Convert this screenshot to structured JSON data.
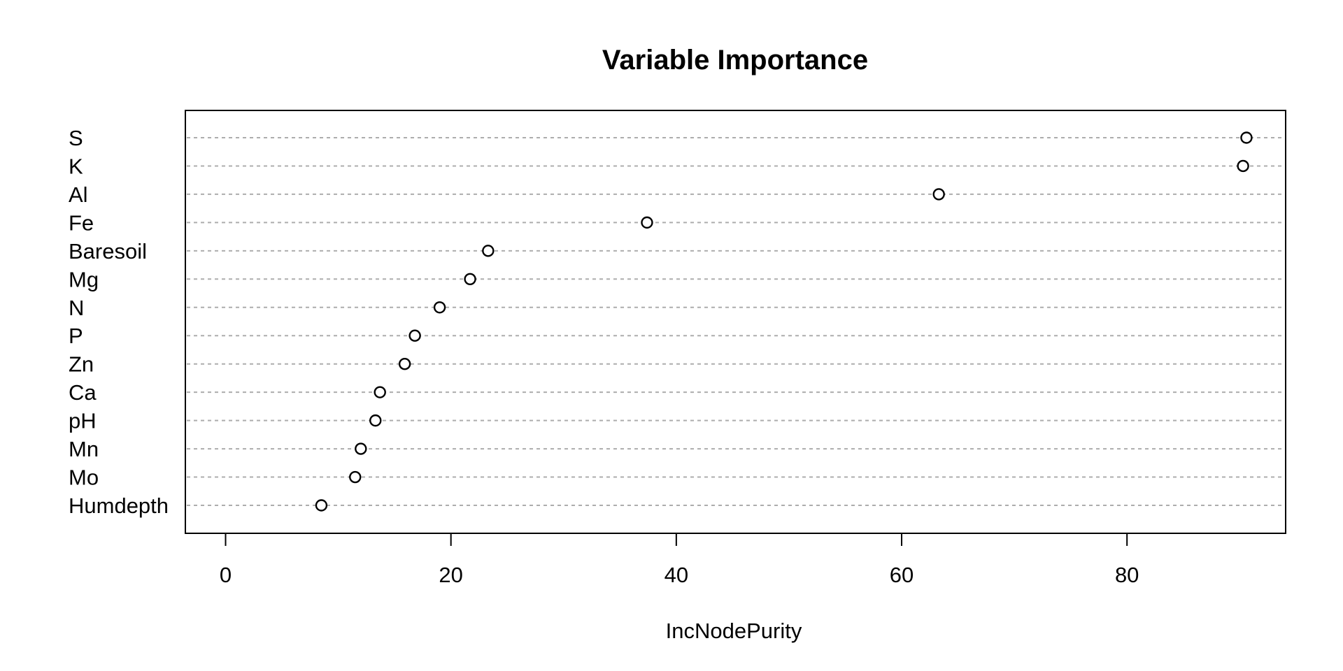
{
  "chart_data": {
    "type": "scatter",
    "subtype": "dotchart-variable-importance",
    "title": "Variable Importance",
    "xlabel": "IncNodePurity",
    "ylabel": "",
    "categories": [
      "S",
      "K",
      "Al",
      "Fe",
      "Baresoil",
      "Mg",
      "N",
      "P",
      "Zn",
      "Ca",
      "pH",
      "Mn",
      "Mo",
      "Humdepth"
    ],
    "values": [
      90.6,
      90.3,
      63.3,
      37.4,
      23.3,
      21.7,
      19.0,
      16.8,
      15.9,
      13.7,
      13.3,
      12.0,
      11.5,
      8.5
    ],
    "x_ticks": [
      0,
      20,
      40,
      60,
      80
    ],
    "xlim": [
      -3.57,
      94.08
    ],
    "grid": "horizontal-dashed",
    "legend": "none",
    "marker": "open-circle",
    "colors": {
      "background": "#ffffff",
      "text": "#000000",
      "box": "#000000",
      "grid": "#adadad",
      "marker_stroke": "#000000",
      "marker_fill": "#ffffff"
    }
  }
}
